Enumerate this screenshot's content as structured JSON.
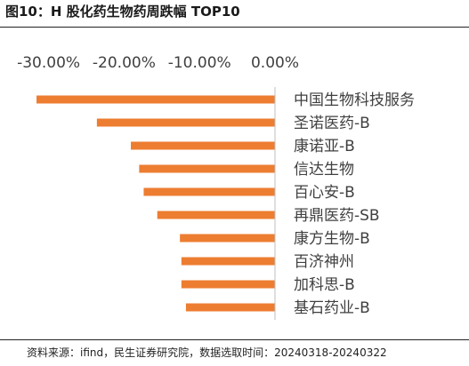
{
  "figure": {
    "title": "图10：H 股化药生物药周跌幅 TOP10",
    "source": "资料来源：ifind，民生证券研究院，数据选取时间：20240318-20240322"
  },
  "chart_data": {
    "type": "bar",
    "orientation": "horizontal",
    "title": "",
    "xlabel": "",
    "ylabel": "",
    "xlim": [
      -30,
      0
    ],
    "x_ticks": [
      -30,
      -20,
      -10,
      0
    ],
    "x_tick_labels": [
      "-30.00%",
      "-20.00%",
      "-10.00%",
      "0.00%"
    ],
    "axis_position": "top",
    "grid": false,
    "legend": "none",
    "bar_color": "#ED7D31",
    "categories": [
      "中国生物科技服务",
      "圣诺医药-B",
      "康诺亚-B",
      "信达生物",
      "百心安-B",
      "再鼎医药-SB",
      "康方生物-B",
      "百济神州",
      "加科思-B",
      "基石药业-B"
    ],
    "values": [
      -31.6,
      -23.6,
      -19.1,
      -18.0,
      -17.4,
      -15.6,
      -12.6,
      -12.4,
      -12.4,
      -11.8
    ],
    "value_unit": "%"
  }
}
